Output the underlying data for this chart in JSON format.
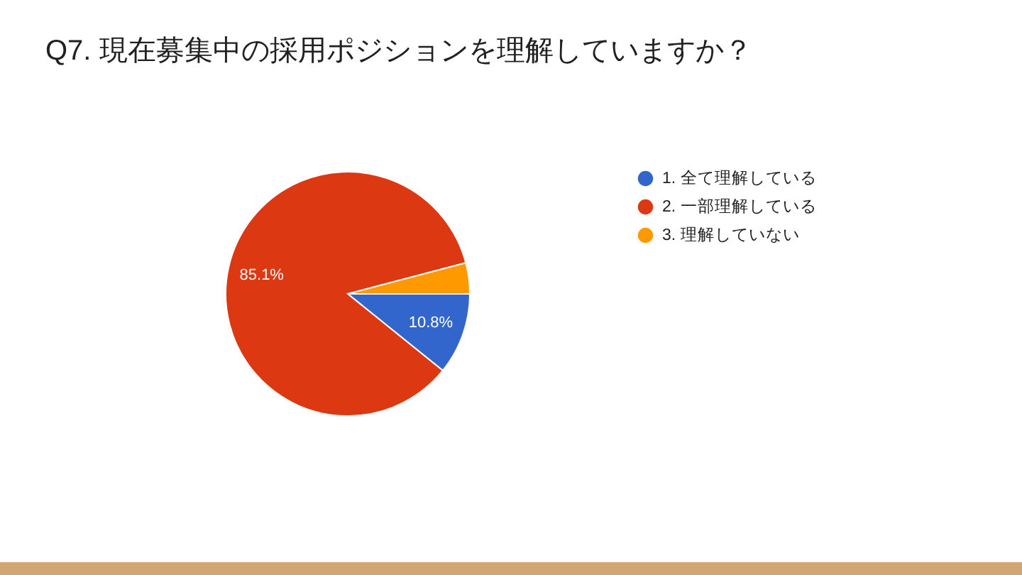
{
  "chart_data": {
    "type": "pie",
    "title": "Q7. 現在募集中の採用ポジションを理解していますか？",
    "categories": [
      "1. 全て理解している",
      "2. 一部理解している",
      "3. 理解していない"
    ],
    "values": [
      10.8,
      85.1,
      4.1
    ],
    "colors": [
      "#3366cc",
      "#dc3912",
      "#ff9900"
    ],
    "value_labels": [
      "10.8%",
      "85.1%",
      null
    ],
    "legend": "right"
  }
}
